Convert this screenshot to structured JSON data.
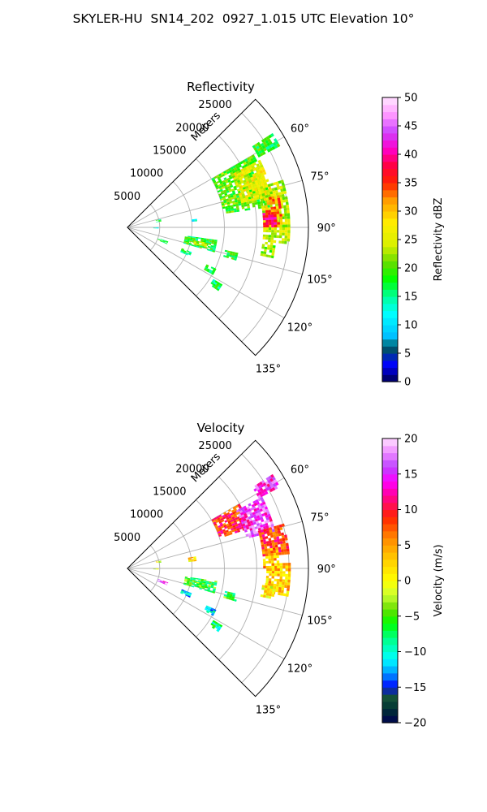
{
  "figure": {
    "title": "SKYLER-HU  SN14_202  0927_1.015 UTC Elevation 10°"
  },
  "chart_data": [
    {
      "type": "heatmap",
      "subtype": "polar-sector (radar PPI)",
      "title": "Reflectivity",
      "radial_label": "Meters",
      "radial_ticks": [
        "5000",
        "10000",
        "15000",
        "20000",
        "25000"
      ],
      "radial_range": [
        0,
        28000
      ],
      "azimuth_ticks": [
        "60°",
        "75°",
        "90°",
        "105°",
        "120°",
        "135°"
      ],
      "azimuth_range_deg": [
        45,
        135
      ],
      "grid": true,
      "colorbar": {
        "label": "Reflectivity dBZ",
        "range": [
          0,
          50
        ],
        "ticks": [
          "0",
          "5",
          "10",
          "15",
          "20",
          "25",
          "30",
          "35",
          "40",
          "45",
          "50"
        ],
        "position": "right"
      },
      "echo_regions": [
        {
          "az": [
            57,
            62
          ],
          "r": [
            23000,
            26500
          ],
          "value": 18
        },
        {
          "az": [
            60,
            82
          ],
          "r": [
            15000,
            22500
          ],
          "value": 20
        },
        {
          "az": [
            63,
            78
          ],
          "r": [
            18000,
            23000
          ],
          "value": 26
        },
        {
          "az": [
            73,
            96
          ],
          "r": [
            21000,
            25000
          ],
          "value": 24
        },
        {
          "az": [
            78,
            90
          ],
          "r": [
            21500,
            24000
          ],
          "value": 33
        },
        {
          "az": [
            84,
            90
          ],
          "r": [
            21000,
            23000
          ],
          "value": 38
        },
        {
          "az": [
            96,
            102
          ],
          "r": [
            21000,
            23000
          ],
          "value": 22
        },
        {
          "az": [
            98,
            106
          ],
          "r": [
            9000,
            14000
          ],
          "value": 18
        },
        {
          "az": [
            101,
            104
          ],
          "r": [
            10500,
            12500
          ],
          "value": 24
        },
        {
          "az": [
            103,
            107
          ],
          "r": [
            15500,
            17500
          ],
          "value": 19
        },
        {
          "az": [
            109,
            113
          ],
          "r": [
            5000,
            6500
          ],
          "value": 18
        },
        {
          "az": [
            111,
            115
          ],
          "r": [
            9000,
            10500
          ],
          "value": 16
        },
        {
          "az": [
            115,
            119
          ],
          "r": [
            13500,
            15000
          ],
          "value": 18
        },
        {
          "az": [
            121,
            125
          ],
          "r": [
            15500,
            17000
          ],
          "value": 16
        },
        {
          "az": [
            90,
            92
          ],
          "r": [
            4000,
            4500
          ],
          "value": 12
        },
        {
          "az": [
            82,
            85
          ],
          "r": [
            10000,
            10800
          ],
          "value": 12
        },
        {
          "az": [
            76,
            80
          ],
          "r": [
            4500,
            5000
          ],
          "value": 16
        }
      ]
    },
    {
      "type": "heatmap",
      "subtype": "polar-sector (radar PPI)",
      "title": "Velocity",
      "radial_label": "Meters",
      "radial_ticks": [
        "5000",
        "10000",
        "15000",
        "20000",
        "25000"
      ],
      "radial_range": [
        0,
        28000
      ],
      "azimuth_ticks": [
        "60°",
        "75°",
        "90°",
        "105°",
        "120°",
        "135°"
      ],
      "azimuth_range_deg": [
        45,
        135
      ],
      "grid": true,
      "colorbar": {
        "label": "Velocity (m/s)",
        "range": [
          -20,
          20
        ],
        "ticks": [
          "-20",
          "-15",
          "-10",
          "-5",
          "0",
          "5",
          "10",
          "15",
          "20"
        ],
        "position": "right"
      },
      "echo_regions": [
        {
          "az": [
            57,
            62
          ],
          "r": [
            23000,
            26500
          ],
          "value": 15
        },
        {
          "az": [
            60,
            72
          ],
          "r": [
            15000,
            20000
          ],
          "value": 9
        },
        {
          "az": [
            62,
            76
          ],
          "r": [
            19000,
            23500
          ],
          "value": 15
        },
        {
          "az": [
            74,
            85
          ],
          "r": [
            21000,
            25000
          ],
          "value": 9
        },
        {
          "az": [
            82,
            90
          ],
          "r": [
            21000,
            23500
          ],
          "value": 4
        },
        {
          "az": [
            88,
            100
          ],
          "r": [
            21500,
            25000
          ],
          "value": 3
        },
        {
          "az": [
            96,
            102
          ],
          "r": [
            21000,
            23000
          ],
          "value": 1
        },
        {
          "az": [
            98,
            106
          ],
          "r": [
            9000,
            14000
          ],
          "value": -6
        },
        {
          "az": [
            101,
            104
          ],
          "r": [
            10500,
            12500
          ],
          "value": -5
        },
        {
          "az": [
            103,
            107
          ],
          "r": [
            15500,
            17500
          ],
          "value": -6
        },
        {
          "az": [
            109,
            113
          ],
          "r": [
            5000,
            6500
          ],
          "value": 16
        },
        {
          "az": [
            111,
            115
          ],
          "r": [
            9000,
            10500
          ],
          "value": -11
        },
        {
          "az": [
            115,
            119
          ],
          "r": [
            13500,
            15000
          ],
          "value": -11
        },
        {
          "az": [
            121,
            125
          ],
          "r": [
            15500,
            17000
          ],
          "value": -8
        },
        {
          "az": [
            90,
            92
          ],
          "r": [
            4000,
            4500
          ],
          "value": 1
        },
        {
          "az": [
            80,
            84
          ],
          "r": [
            9500,
            10500
          ],
          "value": 2
        },
        {
          "az": [
            76,
            80
          ],
          "r": [
            4500,
            5000
          ],
          "value": -1
        }
      ]
    }
  ]
}
